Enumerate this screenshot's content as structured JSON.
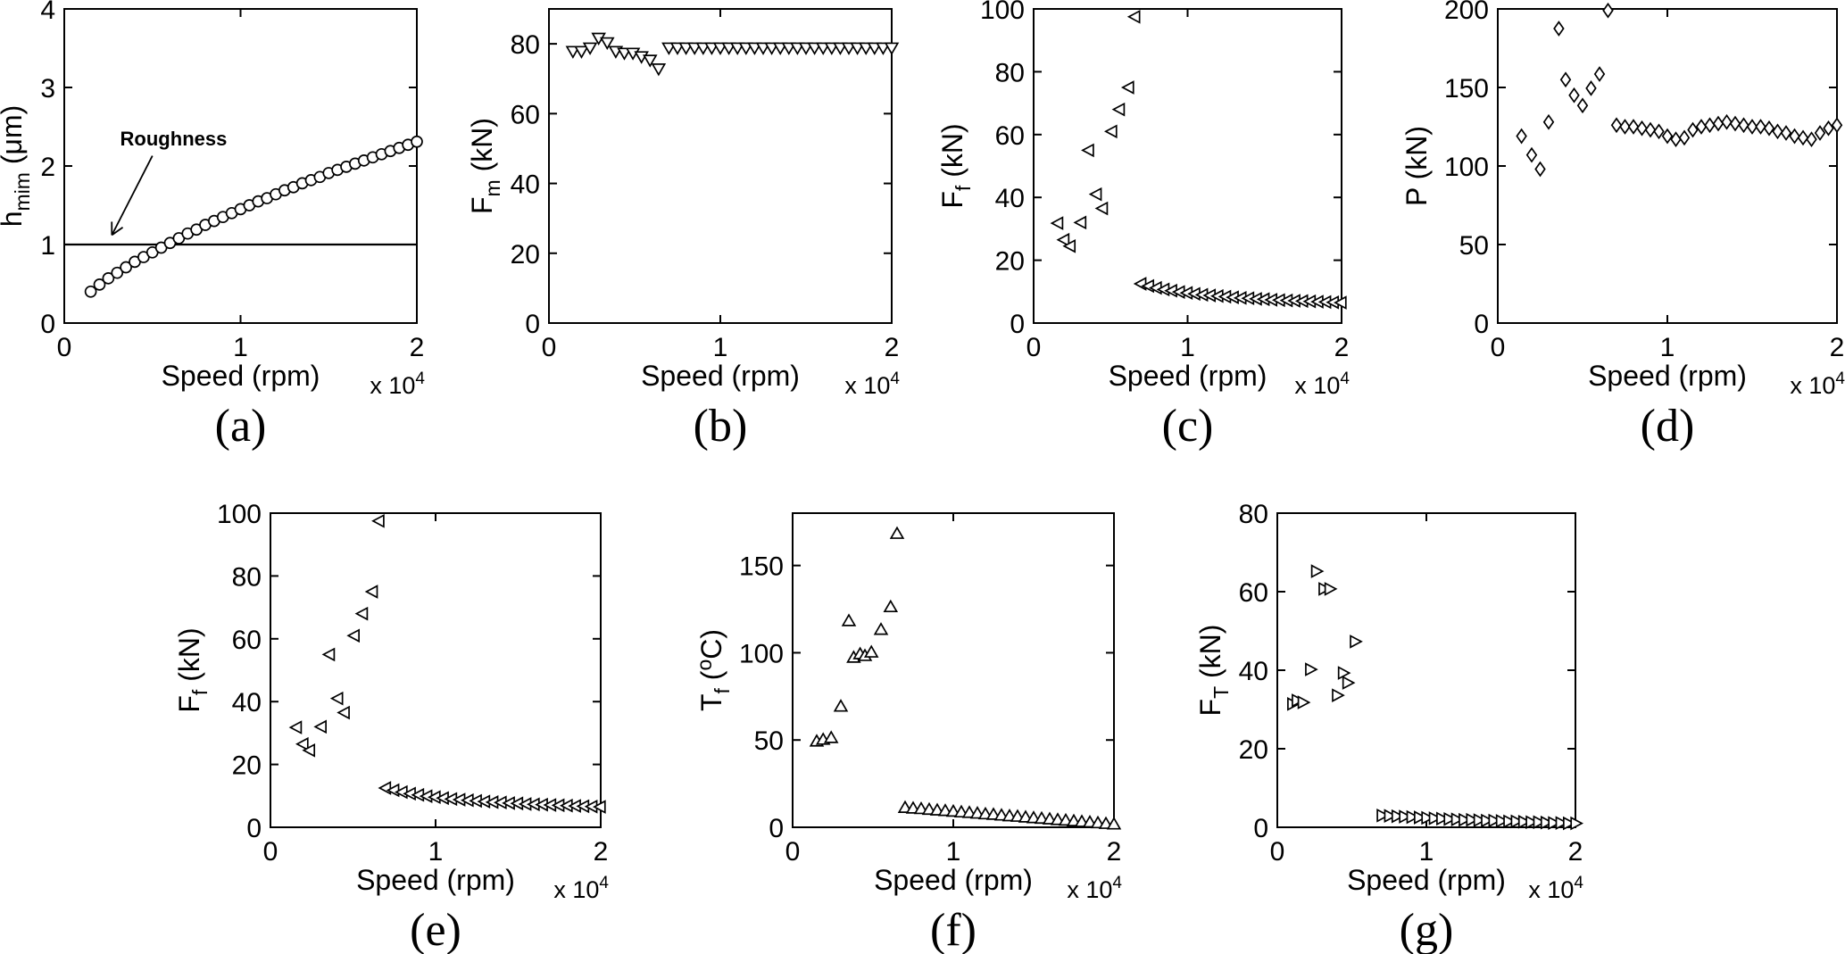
{
  "figure": {
    "background": "#ffffff",
    "axis_color": "#000000",
    "marker_color": "#000000",
    "marker_fill": "#ffffff"
  },
  "chart_data": [
    {
      "id": "a",
      "type": "scatter",
      "caption": "(a)",
      "marker": "circle",
      "xlabel": "Speed (rpm)",
      "x_unit_label": {
        "base": "x 10",
        "exp": "4"
      },
      "ylabel_parts": [
        {
          "t": "h"
        },
        {
          "t": "mim",
          "sub": true
        },
        {
          "t": " (μm)"
        }
      ],
      "xlim": [
        0,
        2
      ],
      "ylim": [
        0,
        4
      ],
      "xticks": [
        0,
        1,
        2
      ],
      "xtick_labels": [
        "0",
        "1",
        "2"
      ],
      "yticks": [
        0,
        1,
        2,
        3,
        4
      ],
      "ytick_labels": [
        "0",
        "1",
        "2",
        "3",
        "4"
      ],
      "hline": 1.0,
      "annotation": {
        "text": "Roughness",
        "text_x": 0.62,
        "text_y": 2.35,
        "arrow_from": [
          0.5,
          2.13
        ],
        "arrow_to": [
          0.27,
          1.12
        ]
      },
      "x": [
        0.15,
        0.2,
        0.25,
        0.3,
        0.35,
        0.4,
        0.45,
        0.5,
        0.55,
        0.6,
        0.65,
        0.7,
        0.75,
        0.8,
        0.85,
        0.9,
        0.95,
        1.0,
        1.05,
        1.1,
        1.15,
        1.2,
        1.25,
        1.3,
        1.35,
        1.4,
        1.45,
        1.5,
        1.55,
        1.6,
        1.65,
        1.7,
        1.75,
        1.8,
        1.85,
        1.9,
        1.95,
        2.0
      ],
      "y": [
        0.4,
        0.49,
        0.57,
        0.64,
        0.71,
        0.78,
        0.84,
        0.9,
        0.96,
        1.02,
        1.08,
        1.14,
        1.19,
        1.25,
        1.3,
        1.35,
        1.4,
        1.45,
        1.5,
        1.55,
        1.59,
        1.64,
        1.69,
        1.73,
        1.78,
        1.82,
        1.86,
        1.91,
        1.95,
        1.99,
        2.03,
        2.07,
        2.11,
        2.15,
        2.19,
        2.23,
        2.27,
        2.31
      ]
    },
    {
      "id": "b",
      "type": "scatter",
      "caption": "(b)",
      "marker": "triangle-down",
      "xlabel": "Speed (rpm)",
      "x_unit_label": {
        "base": "x 10",
        "exp": "4"
      },
      "ylabel_parts": [
        {
          "t": "F"
        },
        {
          "t": "m",
          "sub": true
        },
        {
          "t": " (kN)"
        }
      ],
      "xlim": [
        0,
        2
      ],
      "ylim": [
        0,
        90
      ],
      "xticks": [
        0,
        1,
        2
      ],
      "xtick_labels": [
        "0",
        "1",
        "2"
      ],
      "yticks": [
        0,
        20,
        40,
        60,
        80
      ],
      "ytick_labels": [
        "0",
        "20",
        "40",
        "60",
        "80"
      ],
      "x": [
        0.14,
        0.19,
        0.24,
        0.29,
        0.34,
        0.39,
        0.44,
        0.49,
        0.54,
        0.59,
        0.64,
        0.7,
        0.75,
        0.8,
        0.85,
        0.9,
        0.95,
        1.0,
        1.05,
        1.1,
        1.15,
        1.2,
        1.25,
        1.3,
        1.35,
        1.4,
        1.45,
        1.5,
        1.55,
        1.6,
        1.65,
        1.7,
        1.75,
        1.8,
        1.85,
        1.9,
        1.95,
        2.0
      ],
      "y": [
        78,
        78,
        79,
        81.8,
        80.5,
        78,
        77.5,
        77.5,
        76.5,
        75.5,
        73,
        79,
        79,
        79,
        79,
        79,
        79,
        79,
        79,
        79,
        79,
        79,
        79,
        79,
        79,
        79,
        79,
        79,
        79,
        79,
        79,
        79,
        79,
        79,
        79,
        79,
        79,
        79
      ]
    },
    {
      "id": "c",
      "type": "scatter",
      "caption": "(c)",
      "marker": "triangle-left",
      "xlabel": "Speed (rpm)",
      "x_unit_label": {
        "base": "x 10",
        "exp": "4"
      },
      "ylabel_parts": [
        {
          "t": "F"
        },
        {
          "t": "f",
          "sub": true
        },
        {
          "t": " (kN)"
        }
      ],
      "xlim": [
        0,
        2
      ],
      "ylim": [
        0,
        100
      ],
      "xticks": [
        0,
        1,
        2
      ],
      "xtick_labels": [
        "0",
        "1",
        "2"
      ],
      "yticks": [
        0,
        20,
        40,
        60,
        80,
        100
      ],
      "ytick_labels": [
        "0",
        "20",
        "40",
        "60",
        "80",
        "100"
      ],
      "x": [
        0.16,
        0.2,
        0.24,
        0.31,
        0.36,
        0.41,
        0.45,
        0.51,
        0.56,
        0.62,
        0.66,
        0.7,
        0.75,
        0.8,
        0.85,
        0.9,
        0.95,
        1.0,
        1.05,
        1.1,
        1.15,
        1.2,
        1.25,
        1.3,
        1.35,
        1.4,
        1.45,
        1.5,
        1.55,
        1.6,
        1.65,
        1.7,
        1.75,
        1.8,
        1.85,
        1.9,
        1.95,
        2.0
      ],
      "y": [
        31.8,
        26.5,
        24.5,
        32,
        55,
        41,
        36.5,
        61,
        68,
        75,
        97.5,
        12.5,
        11.8,
        11.2,
        10.7,
        10.3,
        9.9,
        9.6,
        9.3,
        9.0,
        8.8,
        8.6,
        8.4,
        8.2,
        8.0,
        7.9,
        7.7,
        7.6,
        7.4,
        7.3,
        7.2,
        7.1,
        7.0,
        6.9,
        6.8,
        6.7,
        6.6,
        6.5
      ]
    },
    {
      "id": "d",
      "type": "scatter",
      "caption": "(d)",
      "marker": "diamond",
      "xlabel": "Speed (rpm)",
      "x_unit_label": {
        "base": "x 10",
        "exp": "4"
      },
      "ylabel_parts": [
        {
          "t": "P (kN)"
        }
      ],
      "xlim": [
        0,
        2
      ],
      "ylim": [
        0,
        200
      ],
      "xticks": [
        0,
        1,
        2
      ],
      "xtick_labels": [
        "0",
        "1",
        "2"
      ],
      "yticks": [
        0,
        50,
        100,
        150,
        200
      ],
      "ytick_labels": [
        "0",
        "50",
        "100",
        "150",
        "200"
      ],
      "x": [
        0.14,
        0.2,
        0.25,
        0.3,
        0.36,
        0.4,
        0.45,
        0.5,
        0.55,
        0.6,
        0.65,
        0.7,
        0.75,
        0.8,
        0.85,
        0.9,
        0.95,
        1.0,
        1.05,
        1.1,
        1.15,
        1.2,
        1.25,
        1.3,
        1.35,
        1.4,
        1.45,
        1.5,
        1.55,
        1.6,
        1.65,
        1.7,
        1.75,
        1.8,
        1.85,
        1.9,
        1.95,
        2.0
      ],
      "y": [
        119,
        107,
        98,
        128,
        187.5,
        155,
        145,
        138.5,
        149.5,
        158.5,
        199,
        126,
        125,
        125,
        124,
        123,
        122,
        119,
        117,
        118,
        123,
        125,
        126,
        127,
        128,
        127,
        126,
        125,
        125,
        124,
        122,
        121,
        119,
        118,
        117,
        121,
        124,
        126
      ]
    },
    {
      "id": "e",
      "type": "scatter",
      "caption": "(e)",
      "marker": "triangle-left",
      "xlabel": "Speed (rpm)",
      "x_unit_label": {
        "base": "x 10",
        "exp": "4"
      },
      "ylabel_parts": [
        {
          "t": "F"
        },
        {
          "t": "f",
          "sub": true
        },
        {
          "t": " (kN)"
        }
      ],
      "xlim": [
        0,
        2
      ],
      "ylim": [
        0,
        100
      ],
      "xticks": [
        0,
        1,
        2
      ],
      "xtick_labels": [
        "0",
        "1",
        "2"
      ],
      "yticks": [
        0,
        20,
        40,
        60,
        80,
        100
      ],
      "ytick_labels": [
        "0",
        "20",
        "40",
        "60",
        "80",
        "100"
      ],
      "x": [
        0.16,
        0.2,
        0.24,
        0.31,
        0.36,
        0.41,
        0.45,
        0.51,
        0.56,
        0.62,
        0.66,
        0.7,
        0.75,
        0.8,
        0.85,
        0.9,
        0.95,
        1.0,
        1.05,
        1.1,
        1.15,
        1.2,
        1.25,
        1.3,
        1.35,
        1.4,
        1.45,
        1.5,
        1.55,
        1.6,
        1.65,
        1.7,
        1.75,
        1.8,
        1.85,
        1.9,
        1.95,
        2.0
      ],
      "y": [
        31.8,
        26.5,
        24.5,
        32,
        55,
        41,
        36.5,
        61,
        68,
        75,
        97.5,
        12.5,
        11.8,
        11.2,
        10.7,
        10.3,
        9.9,
        9.6,
        9.3,
        9.0,
        8.8,
        8.6,
        8.4,
        8.2,
        8.0,
        7.9,
        7.7,
        7.6,
        7.4,
        7.3,
        7.2,
        7.1,
        7.0,
        6.9,
        6.8,
        6.7,
        6.6,
        6.5
      ]
    },
    {
      "id": "f",
      "type": "scatter",
      "caption": "(f)",
      "marker": "triangle-up",
      "xlabel": "Speed (rpm)",
      "x_unit_label": {
        "base": "x 10",
        "exp": "4"
      },
      "ylabel_parts": [
        {
          "t": "T"
        },
        {
          "t": "f",
          "sub": true
        },
        {
          "t": " ("
        },
        {
          "t": "o",
          "sup": true
        },
        {
          "t": "C)"
        }
      ],
      "xlim": [
        0,
        2
      ],
      "ylim": [
        0,
        180
      ],
      "xticks": [
        0,
        1,
        2
      ],
      "xtick_labels": [
        "0",
        "1",
        "2"
      ],
      "yticks": [
        0,
        50,
        100,
        150
      ],
      "ytick_labels": [
        "0",
        "50",
        "100",
        "150"
      ],
      "x": [
        0.15,
        0.19,
        0.24,
        0.3,
        0.35,
        0.38,
        0.42,
        0.45,
        0.49,
        0.55,
        0.61,
        0.65,
        0.7,
        0.75,
        0.8,
        0.85,
        0.9,
        0.95,
        1.0,
        1.05,
        1.1,
        1.15,
        1.2,
        1.25,
        1.3,
        1.35,
        1.4,
        1.45,
        1.5,
        1.55,
        1.6,
        1.65,
        1.7,
        1.75,
        1.8,
        1.85,
        1.9,
        1.95,
        2.0
      ],
      "y": [
        49,
        50,
        51,
        69,
        118,
        97,
        99,
        98,
        100,
        113,
        126,
        168,
        11.0,
        10.6,
        10.3,
        9.9,
        9.5,
        9.2,
        8.8,
        8.4,
        8.1,
        7.7,
        7.3,
        7.0,
        6.6,
        6.2,
        5.9,
        5.5,
        5.1,
        4.8,
        4.4,
        4.0,
        3.7,
        3.3,
        2.9,
        2.6,
        2.2,
        1.8,
        1.5
      ]
    },
    {
      "id": "g",
      "type": "scatter",
      "caption": "(g)",
      "marker": "triangle-right",
      "xlabel": "Speed (rpm)",
      "x_unit_label": {
        "base": "x 10",
        "exp": "4"
      },
      "ylabel_parts": [
        {
          "t": "F"
        },
        {
          "t": "T",
          "sub": true
        },
        {
          "t": " (kN)"
        }
      ],
      "xlim": [
        0,
        2
      ],
      "ylim": [
        0,
        80
      ],
      "xticks": [
        0,
        1,
        2
      ],
      "xtick_labels": [
        "0",
        "1",
        "2"
      ],
      "yticks": [
        0,
        20,
        40,
        60,
        80
      ],
      "ytick_labels": [
        "0",
        "20",
        "40",
        "60",
        "80"
      ],
      "x": [
        0.1,
        0.13,
        0.17,
        0.22,
        0.26,
        0.31,
        0.35,
        0.4,
        0.44,
        0.47,
        0.52,
        0.7,
        0.75,
        0.8,
        0.85,
        0.9,
        0.95,
        1.0,
        1.05,
        1.1,
        1.15,
        1.2,
        1.25,
        1.3,
        1.35,
        1.4,
        1.45,
        1.5,
        1.55,
        1.6,
        1.65,
        1.7,
        1.75,
        1.8,
        1.85,
        1.9,
        1.95,
        2.0
      ],
      "y": [
        31.4,
        32.3,
        31.8,
        40.2,
        65.2,
        60.7,
        60.7,
        33.6,
        39.3,
        36.8,
        47.3,
        3.0,
        2.9,
        2.8,
        2.7,
        2.6,
        2.5,
        2.4,
        2.3,
        2.2,
        2.1,
        2.0,
        1.9,
        1.9,
        1.8,
        1.7,
        1.7,
        1.6,
        1.5,
        1.5,
        1.4,
        1.3,
        1.3,
        1.2,
        1.1,
        1.1,
        1.0,
        1.0
      ]
    }
  ]
}
